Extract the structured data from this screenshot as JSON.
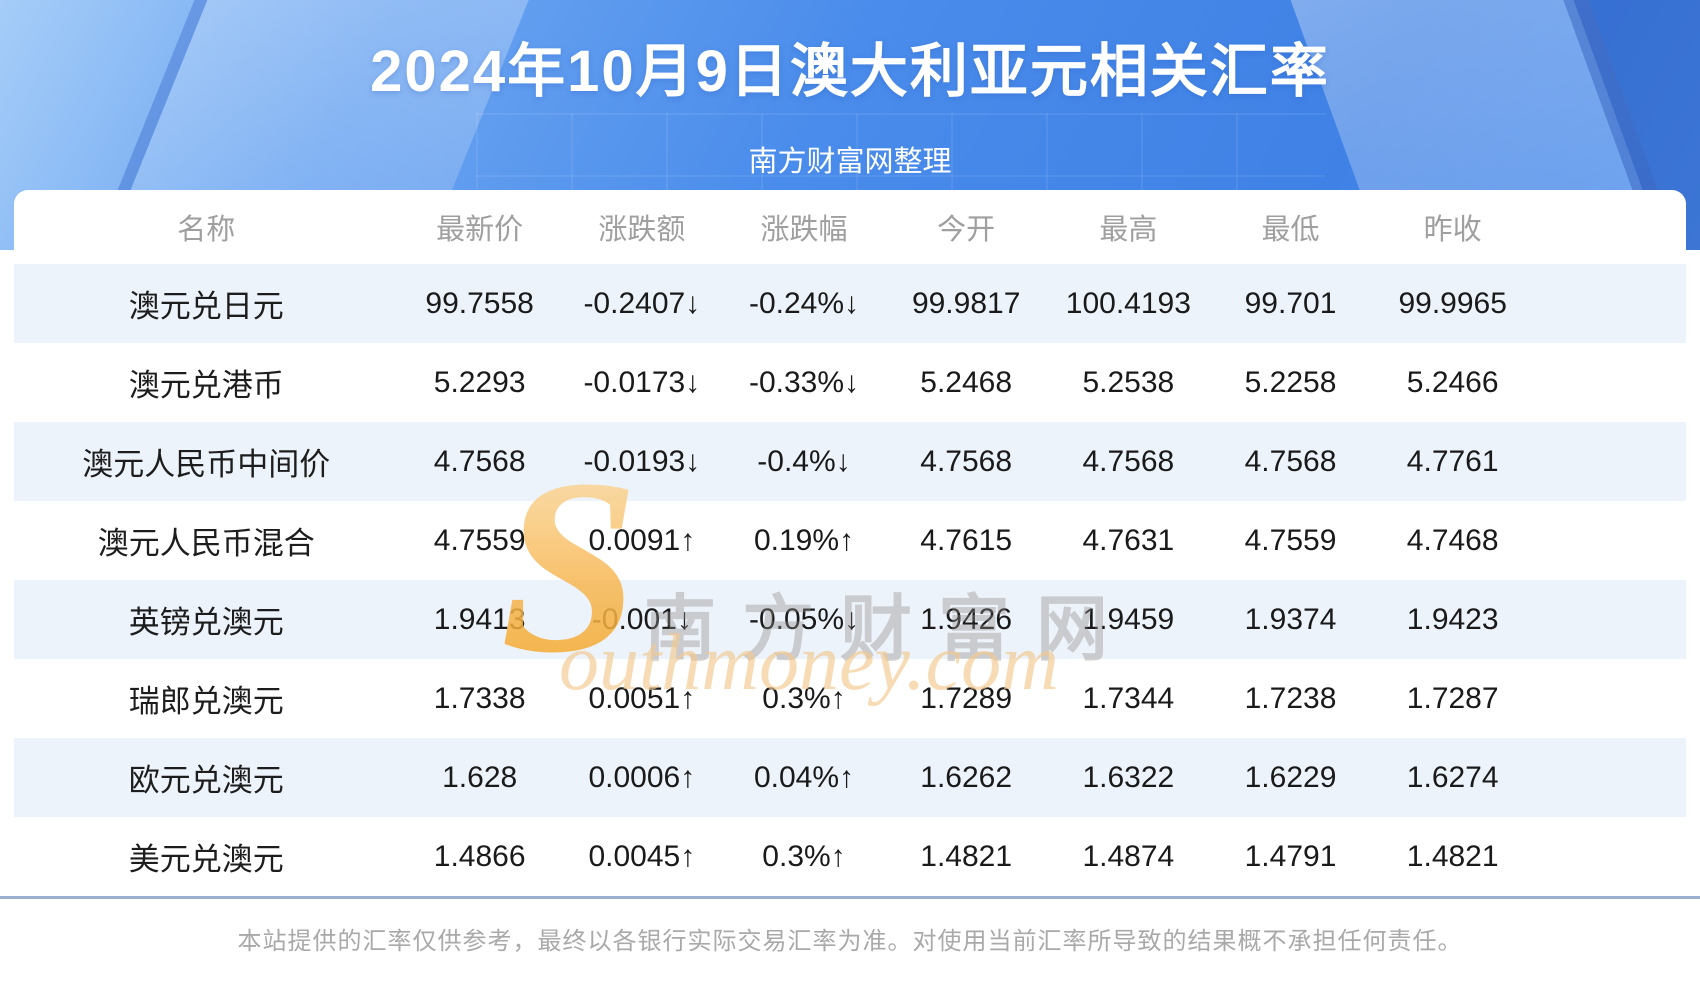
{
  "header": {
    "title": "2024年10月9日澳大利亚元相关汇率",
    "subtitle": "南方财富网整理"
  },
  "table": {
    "columns": [
      "名称",
      "最新价",
      "涨跌额",
      "涨跌幅",
      "今开",
      "最高",
      "最低",
      "昨收"
    ],
    "rows": [
      {
        "name": "澳元兑日元",
        "latest": "99.7558",
        "change": "-0.2407↓",
        "change_pct": "-0.24%↓",
        "open": "99.9817",
        "high": "100.4193",
        "low": "99.701",
        "prev_close": "99.9965",
        "direction": "down"
      },
      {
        "name": "澳元兑港币",
        "latest": "5.2293",
        "change": "-0.0173↓",
        "change_pct": "-0.33%↓",
        "open": "5.2468",
        "high": "5.2538",
        "low": "5.2258",
        "prev_close": "5.2466",
        "direction": "down"
      },
      {
        "name": "澳元人民币中间价",
        "latest": "4.7568",
        "change": "-0.0193↓",
        "change_pct": "-0.4%↓",
        "open": "4.7568",
        "high": "4.7568",
        "low": "4.7568",
        "prev_close": "4.7761",
        "direction": "down"
      },
      {
        "name": "澳元人民币混合",
        "latest": "4.7559",
        "change": "0.0091↑",
        "change_pct": "0.19%↑",
        "open": "4.7615",
        "high": "4.7631",
        "low": "4.7559",
        "prev_close": "4.7468",
        "direction": "up"
      },
      {
        "name": "英镑兑澳元",
        "latest": "1.9413",
        "change": "-0.001↓",
        "change_pct": "-0.05%↓",
        "open": "1.9426",
        "high": "1.9459",
        "low": "1.9374",
        "prev_close": "1.9423",
        "direction": "down"
      },
      {
        "name": "瑞郎兑澳元",
        "latest": "1.7338",
        "change": "0.0051↑",
        "change_pct": "0.3%↑",
        "open": "1.7289",
        "high": "1.7344",
        "low": "1.7238",
        "prev_close": "1.7287",
        "direction": "up"
      },
      {
        "name": "欧元兑澳元",
        "latest": "1.628",
        "change": "0.0006↑",
        "change_pct": "0.04%↑",
        "open": "1.6262",
        "high": "1.6322",
        "low": "1.6229",
        "prev_close": "1.6274",
        "direction": "up"
      },
      {
        "name": "美元兑澳元",
        "latest": "1.4866",
        "change": "0.0045↑",
        "change_pct": "0.3%↑",
        "open": "1.4821",
        "high": "1.4874",
        "low": "1.4791",
        "prev_close": "1.4821",
        "direction": "up"
      }
    ]
  },
  "watermark": {
    "logo_s": "S",
    "site_name_cn": "南方财富网",
    "site_name_en": "outhmoney.com"
  },
  "footer": {
    "disclaimer": "本站提供的汇率仅供参考，最终以各银行实际交易汇率为准。对使用当前汇率所导致的结果概不承担任何责任。"
  },
  "colors": {
    "up_red": "#f21212",
    "down_green": "#0c840c",
    "row_stripe": "#edf3fa",
    "hero_blue": "#4a8ceb",
    "divider": "#9cb0cd"
  }
}
